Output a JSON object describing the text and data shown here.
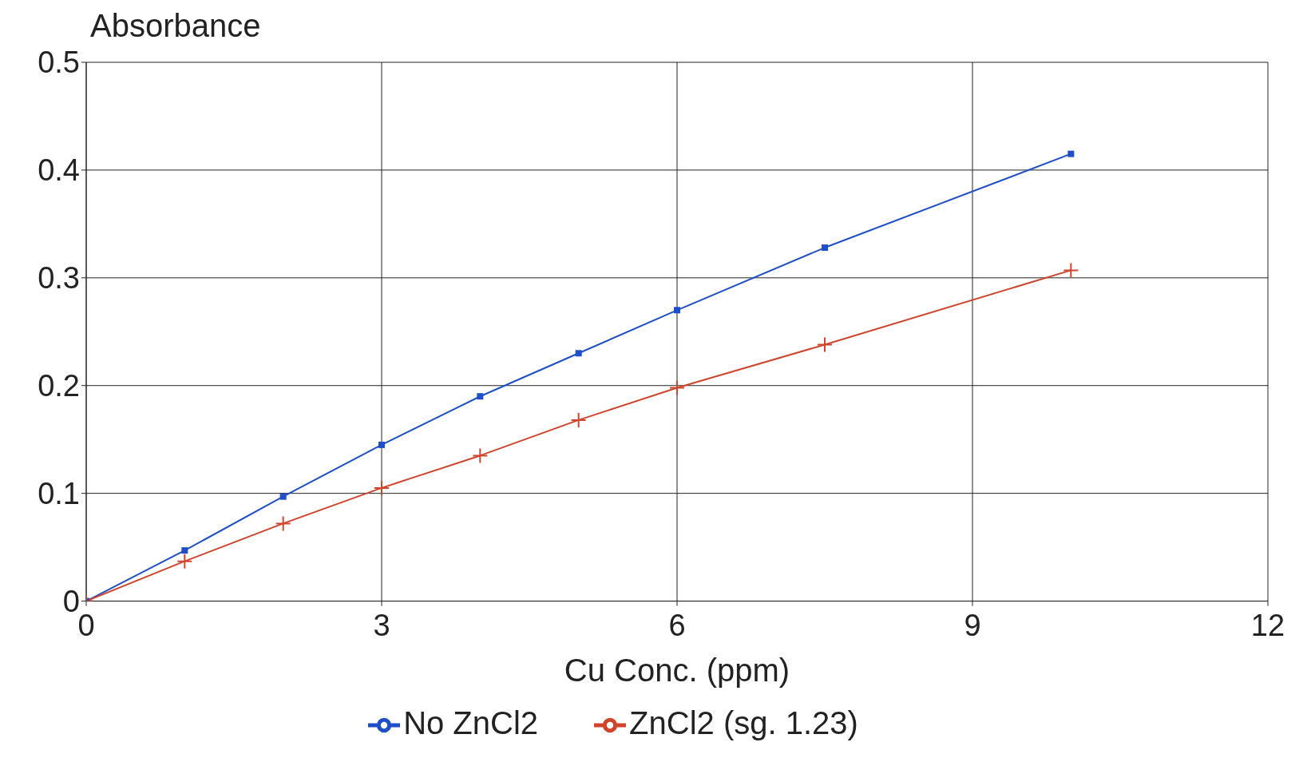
{
  "chart_data": {
    "type": "line",
    "ylabel": "Absorbance",
    "xlabel": "Cu Conc. (ppm)",
    "x": [
      0,
      1,
      2,
      3,
      4,
      5,
      6,
      7.5,
      10
    ],
    "series": [
      {
        "name": "No ZnCl2",
        "color": "#1f4fc8",
        "marker": "square",
        "values": [
          0,
          0.047,
          0.097,
          0.145,
          0.19,
          0.23,
          0.27,
          0.328,
          0.415
        ]
      },
      {
        "name": "ZnCl2 (sg. 1.23)",
        "color": "#d0442c",
        "marker": "cross",
        "values": [
          0,
          0.037,
          0.072,
          0.105,
          0.135,
          0.168,
          0.198,
          0.238,
          0.307
        ]
      }
    ],
    "xlim": [
      0,
      12
    ],
    "xticks": [
      0,
      3,
      6,
      9,
      12
    ],
    "ylim": [
      0,
      0.5
    ],
    "yticks": [
      0,
      0.1,
      0.2,
      0.3,
      0.4,
      0.5
    ],
    "grid": true,
    "legend": "bottom",
    "line_style": "solid"
  }
}
